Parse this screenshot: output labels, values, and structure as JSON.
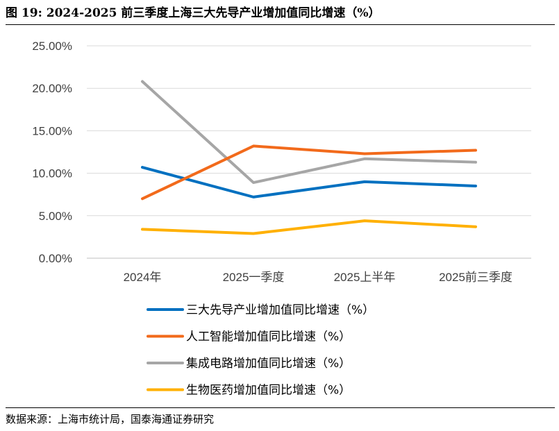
{
  "title": "图 19:  2024-2025 前三季度上海三大先导产业增加值同比增速（%）",
  "source": "数据来源：上海市统计局，国泰海通证券研究",
  "chart_data": {
    "type": "line",
    "title": "2024-2025 前三季度上海三大先导产业增加值同比增速（%）",
    "categories": [
      "2024年",
      "2025一季度",
      "2025上半年",
      "2025前三季度"
    ],
    "ylim": [
      0,
      25
    ],
    "yticks": [
      "0.00%",
      "5.00%",
      "10.00%",
      "15.00%",
      "20.00%",
      "25.00%"
    ],
    "grid": true,
    "legend_position": "bottom",
    "series": [
      {
        "name": "三大先导产业增加值同比增速（%）",
        "color": "#0070C0",
        "values": [
          10.7,
          7.2,
          9.0,
          8.5
        ]
      },
      {
        "name": "人工智能增加值同比增速（%）",
        "color": "#F26A1B",
        "values": [
          7.0,
          13.2,
          12.3,
          12.7
        ]
      },
      {
        "name": "集成电路增加值同比增速（%）",
        "color": "#A6A6A6",
        "values": [
          20.8,
          8.9,
          11.7,
          11.3
        ]
      },
      {
        "name": "生物医药增加值同比增速（%）",
        "color": "#FFB000",
        "values": [
          3.4,
          2.9,
          4.4,
          3.7
        ]
      }
    ]
  }
}
